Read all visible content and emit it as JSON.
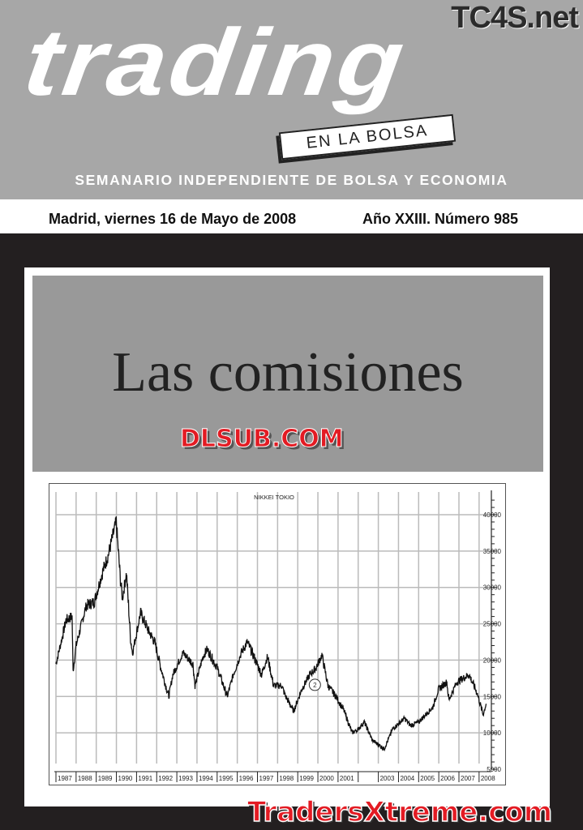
{
  "masthead": {
    "title": "trading",
    "badge": "EN LA BOLSA",
    "site_mark": "TC4S.net",
    "subtitle": "SEMANARIO INDEPENDIENTE DE BOLSA Y ECONOMIA"
  },
  "issue": {
    "date": "Madrid, viernes 16 de Mayo de 2008",
    "number": "Año XXIII. Número 985"
  },
  "headline": "Las comisiones",
  "watermarks": {
    "top": "DLSUB.COM",
    "bottom": "TradersXtreme.com"
  },
  "chart_data": {
    "type": "line",
    "title": "NIKKEI TOKIO",
    "annotation": "2",
    "x_tick_labels": [
      "1987",
      "1988",
      "1989",
      "1990",
      "1991",
      "1992",
      "1993",
      "1994",
      "1995",
      "1996",
      "1997",
      "1998",
      "1999",
      "2000",
      "2001",
      "",
      "2003",
      "2004",
      "2005",
      "2006",
      "2007",
      "2008"
    ],
    "y_tick_labels": [
      "40000",
      "35000",
      "30000",
      "25000",
      "20000",
      "15000",
      "10000",
      "5000"
    ],
    "ylim": [
      5000,
      40000
    ],
    "grid": true,
    "x": [
      1987.0,
      1987.3,
      1987.5,
      1987.8,
      1987.85,
      1988.0,
      1988.5,
      1988.9,
      1989.3,
      1989.6,
      1989.99,
      1990.2,
      1990.3,
      1990.5,
      1990.7,
      1990.8,
      1991.2,
      1991.6,
      1991.9,
      1992.2,
      1992.6,
      1992.8,
      1993.3,
      1993.8,
      1993.9,
      1994.3,
      1994.5,
      1995.0,
      1995.5,
      1995.8,
      1996.2,
      1996.5,
      1996.9,
      1997.2,
      1997.5,
      1997.8,
      1998.2,
      1998.4,
      1998.8,
      1999.2,
      1999.6,
      1999.9,
      2000.2,
      2000.5,
      2000.9,
      2001.3,
      2001.7,
      2002.0,
      2002.3,
      2002.7,
      2003.3,
      2003.7,
      2004.3,
      2004.6,
      2005.0,
      2005.7,
      2005.99,
      2006.4,
      2006.5,
      2006.9,
      2007.5,
      2007.9,
      2008.2,
      2008.35
    ],
    "y": [
      19500,
      23000,
      25500,
      26000,
      18500,
      22000,
      27500,
      28000,
      32000,
      34500,
      39000,
      31000,
      28500,
      32000,
      23000,
      21000,
      26500,
      24000,
      22500,
      19000,
      15000,
      18000,
      21000,
      19500,
      16500,
      20500,
      21500,
      19000,
      15000,
      18000,
      21000,
      22500,
      20000,
      18000,
      20500,
      16500,
      16500,
      15000,
      13000,
      16000,
      18000,
      18900,
      20700,
      16500,
      15000,
      13000,
      10000,
      10500,
      11500,
      9000,
      7800,
      10500,
      12000,
      11000,
      11500,
      13500,
      16000,
      17000,
      14500,
      17000,
      18000,
      15500,
      12500,
      14000
    ]
  }
}
